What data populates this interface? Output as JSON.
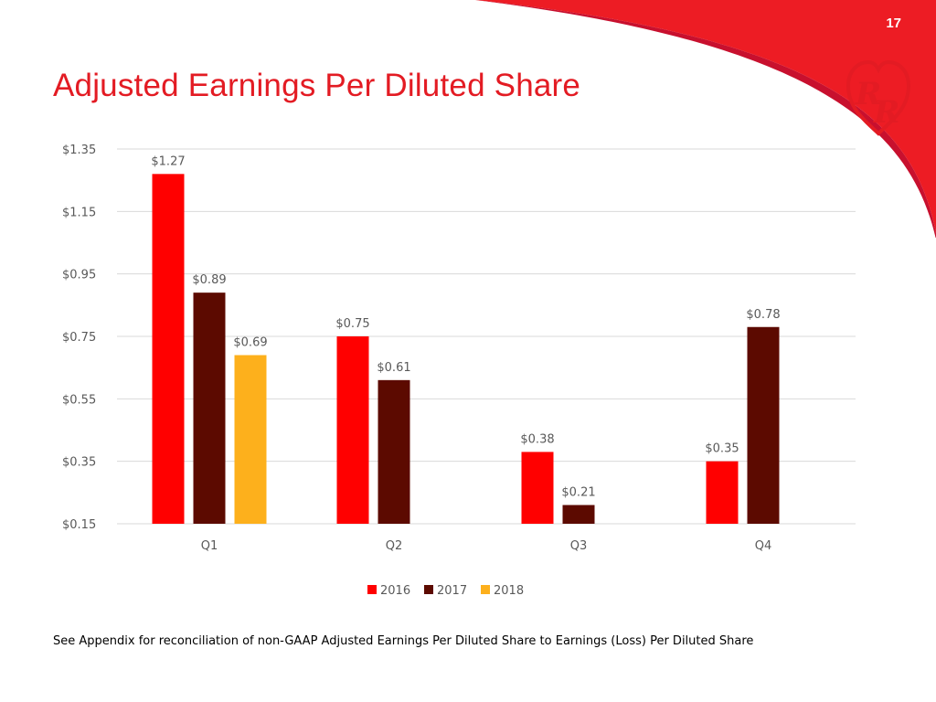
{
  "page_number": "17",
  "title": "Adjusted Earnings Per Diluted Share",
  "footnote": "See Appendix for reconciliation of non-GAAP Adjusted Earnings Per Diluted Share to Earnings (Loss) Per Diluted Share",
  "colors": {
    "accent": "#e31b23",
    "logo": "#e31b23"
  },
  "chart_data": {
    "type": "bar",
    "title": "",
    "xlabel": "",
    "ylabel": "",
    "categories": [
      "Q1",
      "Q2",
      "Q3",
      "Q4"
    ],
    "ylim": [
      0.15,
      1.35
    ],
    "yticks": [
      0.15,
      0.35,
      0.55,
      0.75,
      0.95,
      1.15,
      1.35
    ],
    "ytick_labels": [
      "$0.15",
      "$0.35",
      "$0.55",
      "$0.75",
      "$0.95",
      "$1.15",
      "$1.35"
    ],
    "grid": true,
    "legend_position": "bottom",
    "series": [
      {
        "name": "2016",
        "color": "#ff0000",
        "values": [
          1.27,
          0.75,
          0.38,
          0.35
        ],
        "labels": [
          "$1.27",
          "$0.75",
          "$0.38",
          "$0.35"
        ]
      },
      {
        "name": "2017",
        "color": "#5c0a00",
        "values": [
          0.89,
          0.61,
          0.21,
          0.78
        ],
        "labels": [
          "$0.89",
          "$0.61",
          "$0.21",
          "$0.78"
        ]
      },
      {
        "name": "2018",
        "color": "#fdb01c",
        "values": [
          0.69,
          null,
          null,
          null
        ],
        "labels": [
          "$0.69",
          null,
          null,
          null
        ]
      }
    ]
  }
}
